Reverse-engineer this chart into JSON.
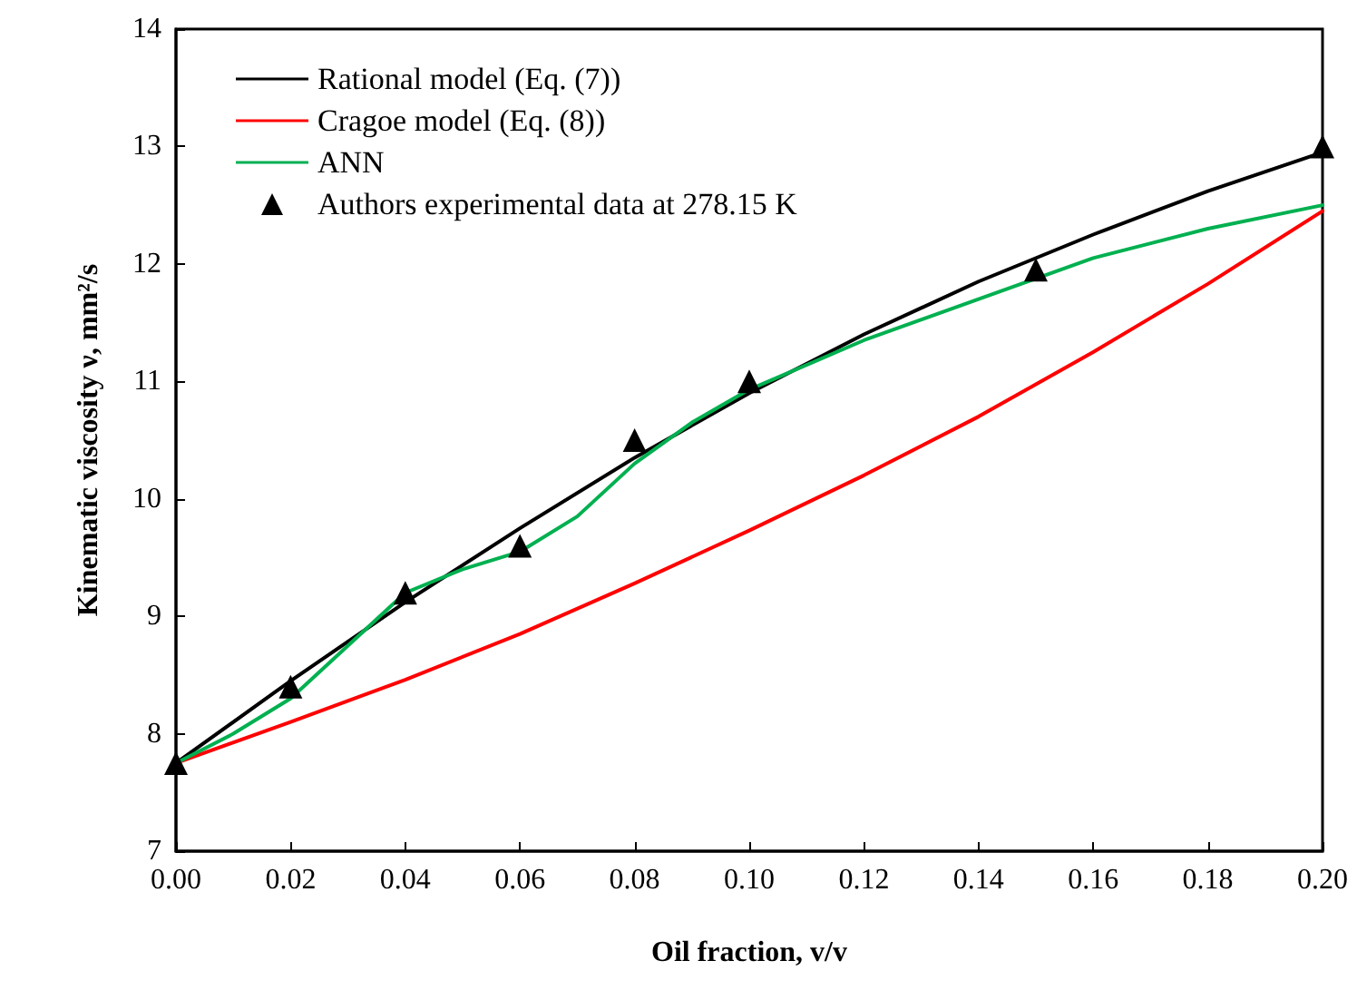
{
  "chart_data": {
    "type": "line",
    "xlabel": "Oil fraction, v/v",
    "ylabel": "Kinematic viscosity ν, mm²/s",
    "xlim": [
      0,
      0.2
    ],
    "ylim": [
      7,
      14
    ],
    "xticks": [
      {
        "value": 0,
        "label": "0.00"
      },
      {
        "value": 0.02,
        "label": "0.02"
      },
      {
        "value": 0.04,
        "label": "0.04"
      },
      {
        "value": 0.06,
        "label": "0.06"
      },
      {
        "value": 0.08,
        "label": "0.08"
      },
      {
        "value": 0.1,
        "label": "0.10"
      },
      {
        "value": 0.12,
        "label": "0.12"
      },
      {
        "value": 0.14,
        "label": "0.14"
      },
      {
        "value": 0.16,
        "label": "0.16"
      },
      {
        "value": 0.18,
        "label": "0.18"
      },
      {
        "value": 0.2,
        "label": "0.20"
      }
    ],
    "yticks": [
      7,
      8,
      9,
      10,
      11,
      12,
      13,
      14
    ],
    "grid": false,
    "legend": "top left",
    "line_style": "solid",
    "series": [
      {
        "name": "Rational model (Eq. (7))",
        "color": "#000000",
        "marker": "none",
        "x": [
          0,
          0.02,
          0.04,
          0.06,
          0.08,
          0.1,
          0.12,
          0.14,
          0.16,
          0.18,
          0.2
        ],
        "values": [
          7.75,
          8.45,
          9.12,
          9.75,
          10.35,
          10.9,
          11.4,
          11.85,
          12.25,
          12.62,
          12.95
        ]
      },
      {
        "name": "Cragoe model (Eq. (8))",
        "color": "#ff0000",
        "marker": "none",
        "x": [
          0,
          0.02,
          0.04,
          0.06,
          0.08,
          0.1,
          0.12,
          0.14,
          0.16,
          0.18,
          0.2
        ],
        "values": [
          7.75,
          8.1,
          8.46,
          8.85,
          9.28,
          9.73,
          10.2,
          10.7,
          11.25,
          11.83,
          12.45
        ]
      },
      {
        "name": "ANN",
        "color": "#00b050",
        "marker": "none",
        "x": [
          0,
          0.01,
          0.02,
          0.03,
          0.04,
          0.05,
          0.06,
          0.07,
          0.08,
          0.09,
          0.1,
          0.12,
          0.14,
          0.16,
          0.18,
          0.2
        ],
        "values": [
          7.75,
          8.0,
          8.3,
          8.75,
          9.2,
          9.4,
          9.55,
          9.85,
          10.3,
          10.65,
          10.93,
          11.35,
          11.7,
          12.05,
          12.3,
          12.5
        ]
      },
      {
        "name": "Authors experimental data at 278.15 K",
        "type": "scatter",
        "color": "#000000",
        "marker": "triangle",
        "x": [
          0,
          0.02,
          0.04,
          0.06,
          0.08,
          0.1,
          0.15,
          0.2
        ],
        "values": [
          7.75,
          8.4,
          9.2,
          9.6,
          10.5,
          11.0,
          11.95,
          13.0
        ]
      }
    ]
  }
}
